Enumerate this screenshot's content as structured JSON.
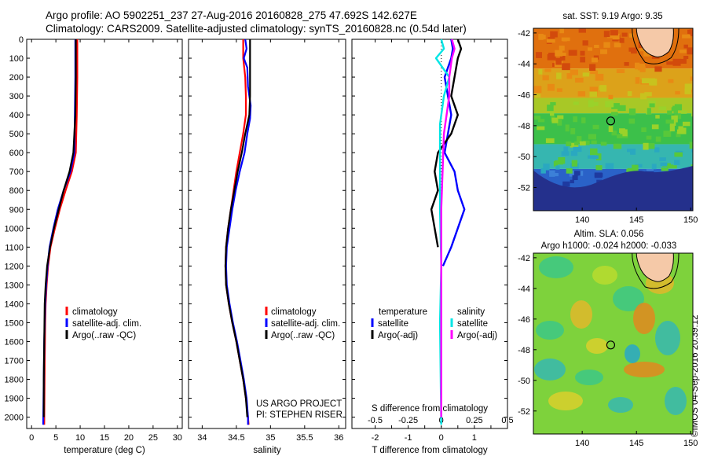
{
  "header": {
    "line1": "Argo profile: AO 5902251_237 27-Aug-2016 20160828_275 47.692S 142.627E",
    "line2": "Climatology: CARS2009. Satellite-adjusted climatology: synTS_20160828.nc (0.54d later)"
  },
  "credit": "©IMOS 04-Sep-2016 20:39:12",
  "colors": {
    "climatology": "#ff0000",
    "satellite": "#0000ff",
    "argo": "#000000",
    "s_satellite": "#00e5e5",
    "s_argo": "#ff00ff"
  },
  "chart_data": [
    {
      "id": "temperature",
      "type": "line",
      "xlabel": "temperature (deg C)",
      "xlim": [
        -1,
        31
      ],
      "ylim": [
        2060,
        0
      ],
      "xticks": [
        0,
        5,
        10,
        15,
        20,
        25,
        30
      ],
      "yticks": [
        0,
        100,
        200,
        300,
        400,
        500,
        600,
        700,
        800,
        900,
        1000,
        1100,
        1200,
        1300,
        1400,
        1500,
        1600,
        1700,
        1800,
        1900,
        2000
      ],
      "legend": [
        "climatology",
        "satellite-adj. clim.",
        "Argo(..raw -QC)"
      ],
      "series": [
        {
          "key": "climatology",
          "color": "#ff0000",
          "points": [
            [
              9.4,
              0
            ],
            [
              9.4,
              200
            ],
            [
              9.3,
              400
            ],
            [
              9.1,
              600
            ],
            [
              8.3,
              700
            ],
            [
              7.0,
              800
            ],
            [
              5.8,
              900
            ],
            [
              4.8,
              1000
            ],
            [
              3.9,
              1100
            ],
            [
              3.4,
              1200
            ],
            [
              3.1,
              1300
            ],
            [
              2.9,
              1400
            ],
            [
              2.8,
              1500
            ],
            [
              2.7,
              1700
            ],
            [
              2.6,
              2040
            ]
          ]
        },
        {
          "key": "satellite",
          "color": "#0000ff",
          "points": [
            [
              9.0,
              0
            ],
            [
              9.0,
              200
            ],
            [
              8.9,
              400
            ],
            [
              8.8,
              600
            ],
            [
              8.0,
              700
            ],
            [
              6.6,
              800
            ],
            [
              5.4,
              900
            ],
            [
              4.5,
              1000
            ],
            [
              3.7,
              1100
            ],
            [
              3.3,
              1200
            ],
            [
              3.0,
              1300
            ],
            [
              2.8,
              1400
            ],
            [
              2.6,
              1600
            ],
            [
              2.5,
              1800
            ],
            [
              2.4,
              2040
            ]
          ]
        },
        {
          "key": "argo",
          "color": "#000000",
          "points": [
            [
              9.1,
              0
            ],
            [
              9.1,
              200
            ],
            [
              9.0,
              400
            ],
            [
              8.6,
              600
            ],
            [
              7.8,
              700
            ],
            [
              6.6,
              800
            ],
            [
              5.6,
              900
            ],
            [
              4.6,
              1000
            ],
            [
              3.8,
              1100
            ],
            [
              3.2,
              1200
            ],
            [
              2.9,
              1300
            ],
            [
              2.7,
              1400
            ],
            [
              2.6,
              1600
            ],
            [
              2.5,
              1800
            ],
            [
              2.5,
              2000
            ]
          ]
        }
      ]
    },
    {
      "id": "salinity",
      "type": "line",
      "xlabel": "salinity",
      "xlim": [
        33.8,
        36.1
      ],
      "ylim": [
        2060,
        0
      ],
      "xticks": [
        34,
        34.5,
        35,
        35.5,
        36
      ],
      "legend": [
        "climatology",
        "satellite-adj. clim.",
        "Argo(..raw -QC)"
      ],
      "annotation": [
        "US ARGO PROJECT",
        "PI: STEPHEN RISER"
      ],
      "series": [
        {
          "key": "climatology",
          "color": "#ff0000",
          "points": [
            [
              34.6,
              0
            ],
            [
              34.6,
              100
            ],
            [
              34.63,
              200
            ],
            [
              34.64,
              300
            ],
            [
              34.64,
              400
            ],
            [
              34.6,
              500
            ],
            [
              34.55,
              600
            ],
            [
              34.5,
              700
            ],
            [
              34.46,
              800
            ],
            [
              34.42,
              900
            ],
            [
              34.38,
              1000
            ],
            [
              34.35,
              1100
            ],
            [
              34.34,
              1200
            ],
            [
              34.35,
              1300
            ],
            [
              34.39,
              1400
            ],
            [
              34.44,
              1500
            ],
            [
              34.5,
              1600
            ],
            [
              34.55,
              1700
            ],
            [
              34.6,
              1800
            ],
            [
              34.64,
              1900
            ],
            [
              34.67,
              2000
            ],
            [
              34.68,
              2040
            ]
          ]
        },
        {
          "key": "satellite",
          "color": "#0000ff",
          "points": [
            [
              34.63,
              0
            ],
            [
              34.65,
              50
            ],
            [
              34.61,
              100
            ],
            [
              34.66,
              150
            ],
            [
              34.67,
              250
            ],
            [
              34.71,
              350
            ],
            [
              34.7,
              420
            ],
            [
              34.66,
              500
            ],
            [
              34.62,
              600
            ],
            [
              34.55,
              700
            ],
            [
              34.49,
              800
            ],
            [
              34.44,
              900
            ],
            [
              34.4,
              1000
            ],
            [
              34.36,
              1100
            ],
            [
              34.35,
              1200
            ],
            [
              34.36,
              1300
            ],
            [
              34.4,
              1400
            ],
            [
              34.45,
              1500
            ],
            [
              34.51,
              1600
            ],
            [
              34.56,
              1700
            ],
            [
              34.61,
              1800
            ],
            [
              34.65,
              1900
            ],
            [
              34.67,
              2000
            ],
            [
              34.67,
              2040
            ]
          ]
        },
        {
          "key": "argo",
          "color": "#000000",
          "points": [
            [
              34.7,
              0
            ],
            [
              34.7,
              300
            ],
            [
              34.69,
              400
            ],
            [
              34.63,
              500
            ],
            [
              34.58,
              600
            ],
            [
              34.52,
              700
            ],
            [
              34.47,
              800
            ],
            [
              34.42,
              900
            ],
            [
              34.38,
              1000
            ],
            [
              34.35,
              1100
            ],
            [
              34.34,
              1200
            ],
            [
              34.35,
              1300
            ],
            [
              34.39,
              1400
            ],
            [
              34.44,
              1500
            ],
            [
              34.5,
              1600
            ],
            [
              34.55,
              1700
            ],
            [
              34.6,
              1800
            ],
            [
              34.64,
              1900
            ],
            [
              34.66,
              2000
            ]
          ]
        }
      ]
    },
    {
      "id": "difference",
      "type": "line",
      "xlabel": "T difference from climatology",
      "toplabel": "S difference from climatology",
      "xlim": [
        -2.7,
        2.0
      ],
      "ylim": [
        2060,
        0
      ],
      "xticks": [
        -2,
        -1.5,
        -1,
        -0.5,
        0,
        0.5,
        1,
        1.5
      ],
      "xticklabels": [
        "-2",
        "",
        "-1",
        "",
        "0",
        "",
        "1",
        ""
      ],
      "sticks": [
        -0.5,
        -0.25,
        0,
        0.25,
        0.5
      ],
      "sticklabels": [
        "-0.5",
        "-0.25",
        "0",
        "0.25",
        "0.5"
      ],
      "s_per_t": 0.25,
      "legend_t_title": "temperature",
      "legend_s_title": "salinity",
      "legend_t": [
        "satellite",
        "Argo(-adj)"
      ],
      "legend_s": [
        "satellite",
        "Argo(-adj)"
      ],
      "series": [
        {
          "key": "t_satellite",
          "color": "#0000ff",
          "points": [
            [
              0.3,
              0
            ],
            [
              0.35,
              50
            ],
            [
              0.3,
              100
            ],
            [
              0.1,
              200
            ],
            [
              0.2,
              300
            ],
            [
              0.3,
              400
            ],
            [
              0.2,
              500
            ],
            [
              0.1,
              600
            ],
            [
              0.4,
              700
            ],
            [
              0.5,
              800
            ],
            [
              0.7,
              900
            ],
            [
              0.5,
              1000
            ],
            [
              0.3,
              1100
            ],
            [
              0.05,
              1200
            ]
          ]
        },
        {
          "key": "t_argo",
          "color": "#000000",
          "points": [
            [
              0.5,
              0
            ],
            [
              0.6,
              50
            ],
            [
              0.5,
              100
            ],
            [
              0.4,
              200
            ],
            [
              0.3,
              300
            ],
            [
              0.5,
              400
            ],
            [
              0.3,
              500
            ],
            [
              -0.1,
              600
            ],
            [
              -0.2,
              700
            ],
            [
              -0.1,
              800
            ],
            [
              -0.3,
              900
            ],
            [
              -0.2,
              1000
            ],
            [
              -0.1,
              1100
            ]
          ]
        },
        {
          "key": "s_satellite",
          "color": "#00e5e5",
          "points": [
            [
              0.0,
              0
            ],
            [
              0.02,
              50
            ],
            [
              -0.04,
              100
            ],
            [
              0.06,
              200
            ],
            [
              0.02,
              300
            ],
            [
              -0.01,
              450
            ],
            [
              -0.01,
              900
            ],
            [
              0.0,
              1200
            ],
            [
              -0.01,
              1500
            ],
            [
              0.0,
              2040
            ]
          ]
        },
        {
          "key": "s_argo",
          "color": "#ff00ff",
          "points": [
            [
              0.08,
              0
            ],
            [
              0.1,
              50
            ],
            [
              0.08,
              100
            ],
            [
              0.06,
              200
            ],
            [
              0.06,
              300
            ],
            [
              0.02,
              500
            ],
            [
              0.01,
              700
            ],
            [
              0.0,
              900
            ],
            [
              0.0,
              1200
            ],
            [
              0.0,
              2000
            ]
          ]
        }
      ]
    },
    {
      "id": "sst_map",
      "type": "heatmap",
      "title": "sat. SST: 9.19 Argo: 9.35",
      "xlim": [
        135.5,
        150.2
      ],
      "ylim": [
        -53.5,
        -41.7
      ],
      "xticks": [
        140,
        145,
        150
      ],
      "yticks": [
        -42,
        -44,
        -46,
        -48,
        -50,
        -52
      ],
      "marker": {
        "lon": 142.627,
        "lat": -47.692
      },
      "bands": [
        {
          "lat_top": -41.7,
          "lat_bottom": -44.3,
          "color": "#e0700e"
        },
        {
          "lat_top": -44.3,
          "lat_bottom": -46.2,
          "color": "#dca21a"
        },
        {
          "lat_top": -46.2,
          "lat_bottom": -47.2,
          "color": "#a8c826"
        },
        {
          "lat_top": -47.2,
          "lat_bottom": -49.2,
          "color": "#3cc04a"
        },
        {
          "lat_top": -49.2,
          "lat_bottom": -50.8,
          "color": "#36b6b0"
        },
        {
          "lat_top": -50.8,
          "lat_bottom": -53.5,
          "color": "#2a62c8"
        }
      ]
    },
    {
      "id": "sla_map",
      "type": "heatmap",
      "title": "Altim. SLA: 0.056",
      "subtitle": "Argo h1000: -0.024 h2000: -0.033",
      "xlim": [
        135.5,
        150.2
      ],
      "ylim": [
        -53.5,
        -41.7
      ],
      "xticks": [
        140,
        145,
        150
      ],
      "yticks": [
        -42,
        -44,
        -46,
        -48,
        -50,
        -52
      ],
      "marker": {
        "lon": 142.627,
        "lat": -47.692
      }
    }
  ]
}
